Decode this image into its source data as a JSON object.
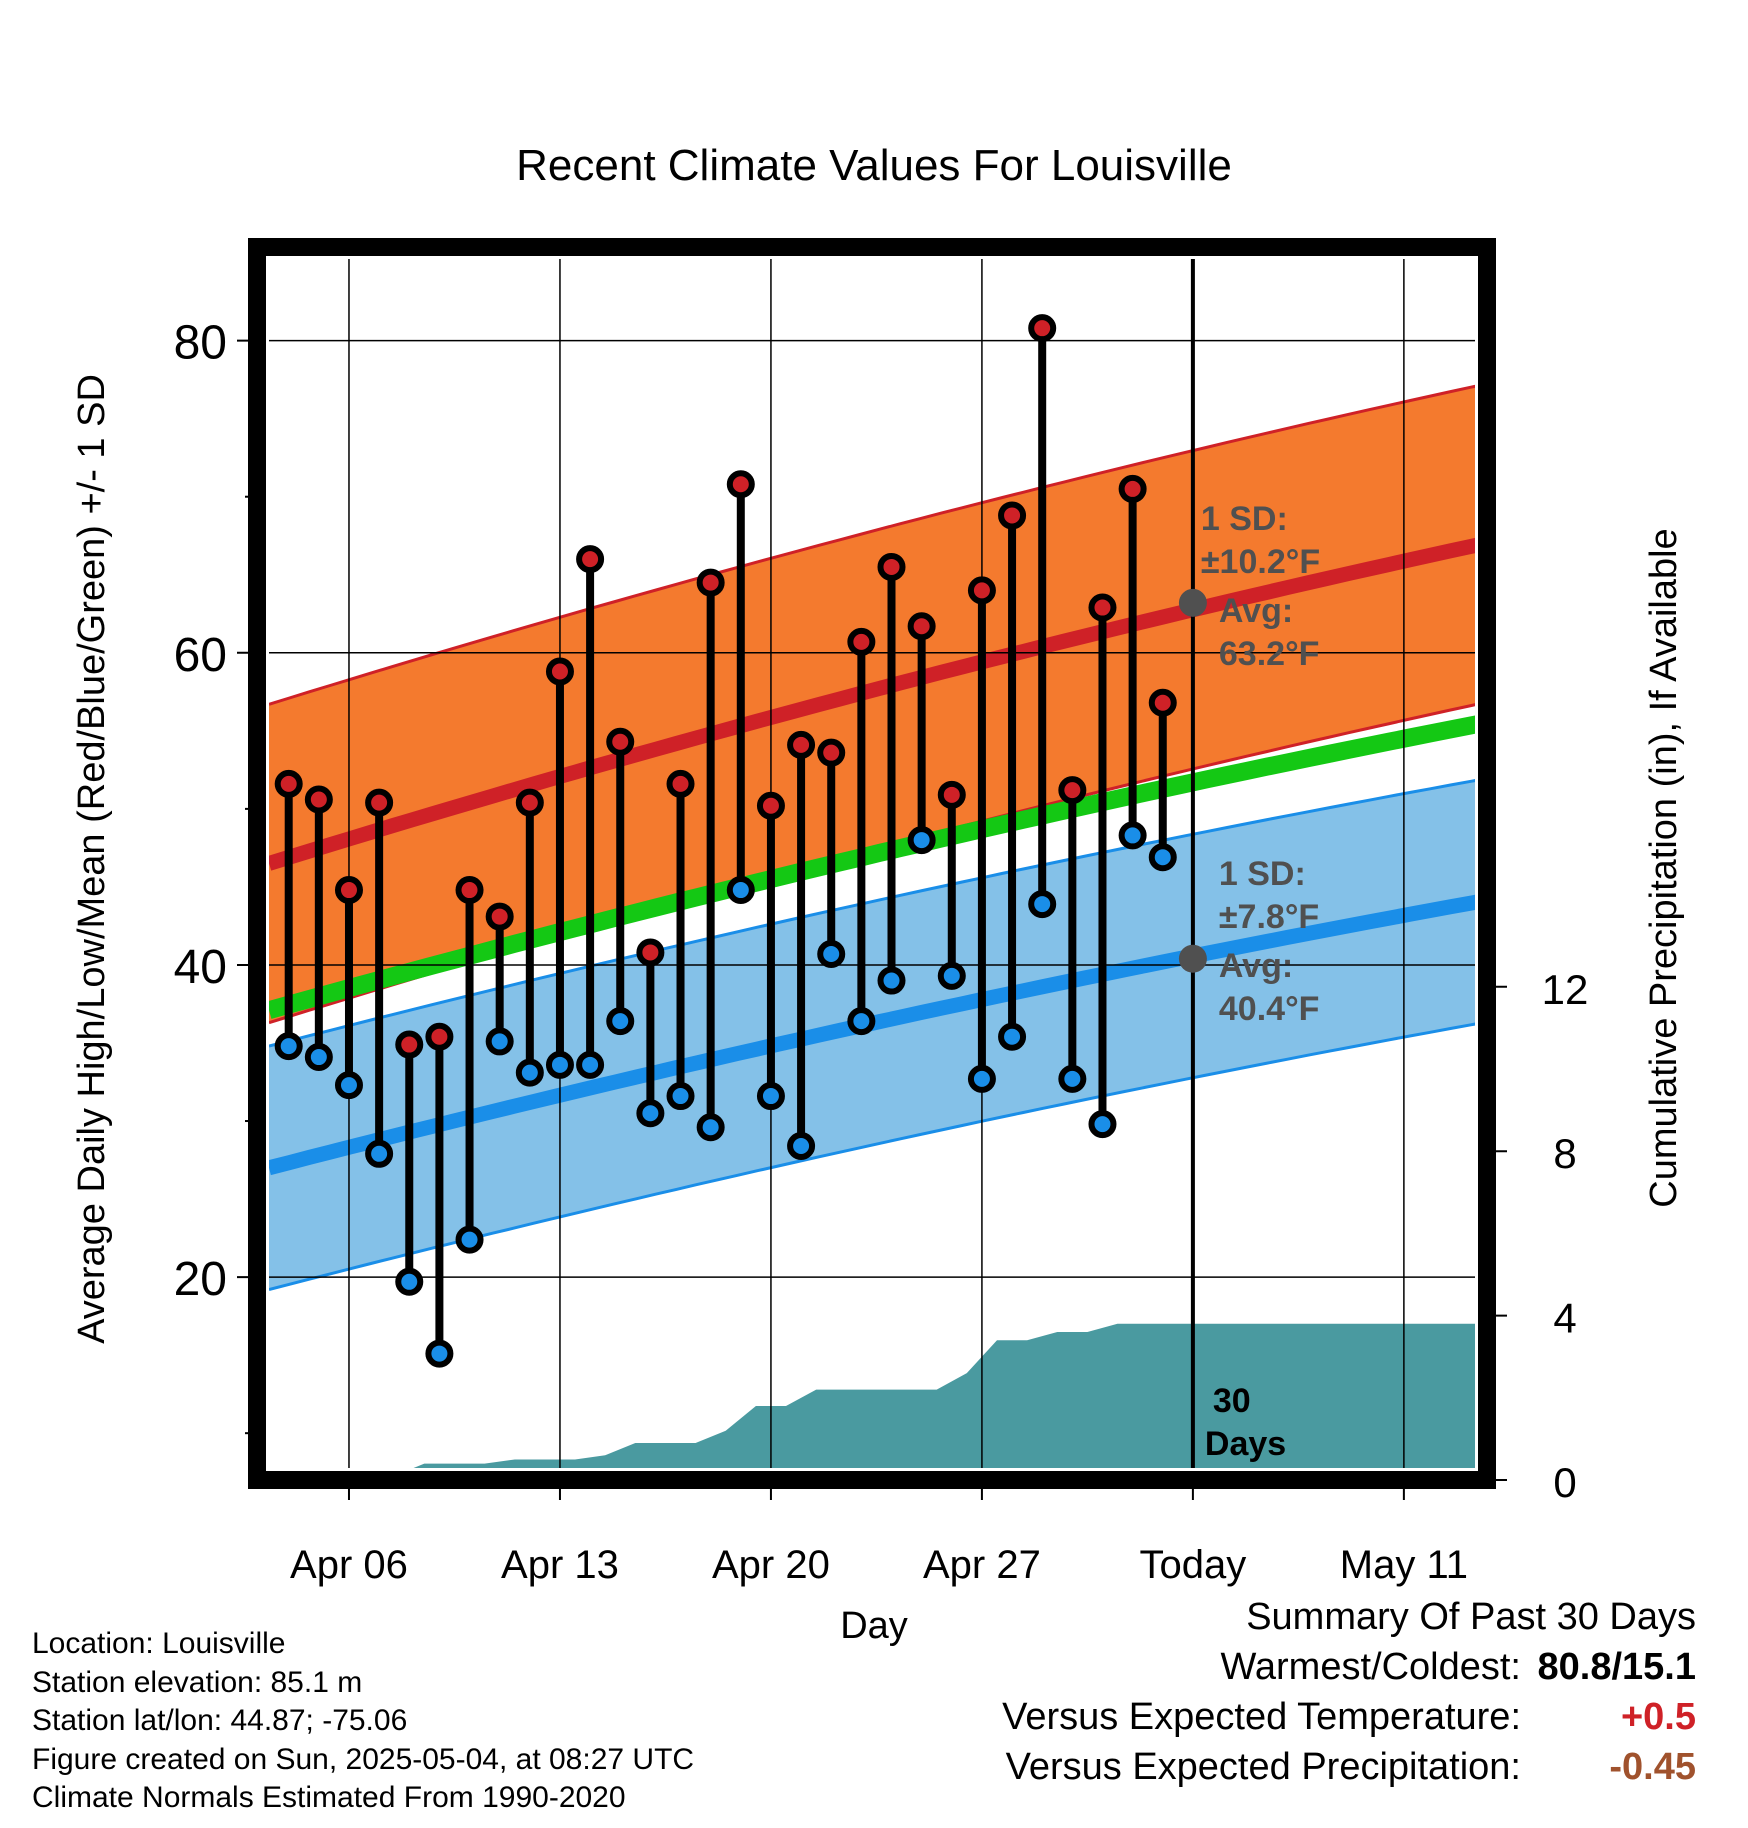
{
  "chart_data": {
    "type": "line",
    "title": "Recent Climate Values For Louisville",
    "xlabel": "Day",
    "ylabel": "Average Daily High/Low/Mean (Red/Blue/Green) +/- 1 SD",
    "y2label": "Cumulative Precipitation (in), If Available",
    "ylim": [
      7,
      86
    ],
    "y2lim": [
      0,
      30
    ],
    "yticks": [
      20,
      40,
      60,
      80
    ],
    "y2ticks": [
      0,
      4,
      8,
      12
    ],
    "x_tick_labels": [
      "Apr 06",
      "Apr 13",
      "Apr 20",
      "Apr 27",
      "Today",
      "May 11"
    ],
    "grid": true,
    "days": [
      "Apr 04",
      "Apr 05",
      "Apr 06",
      "Apr 07",
      "Apr 08",
      "Apr 09",
      "Apr 10",
      "Apr 11",
      "Apr 12",
      "Apr 13",
      "Apr 14",
      "Apr 15",
      "Apr 16",
      "Apr 17",
      "Apr 18",
      "Apr 19",
      "Apr 20",
      "Apr 21",
      "Apr 22",
      "Apr 23",
      "Apr 24",
      "Apr 25",
      "Apr 26",
      "Apr 27",
      "Apr 28",
      "Apr 29",
      "Apr 30",
      "May 01",
      "May 02",
      "May 03"
    ],
    "observed_high": [
      51.6,
      50.6,
      44.8,
      50.4,
      34.9,
      35.4,
      44.8,
      43.1,
      50.4,
      58.8,
      66.0,
      54.3,
      40.8,
      51.6,
      64.5,
      70.8,
      50.2,
      54.1,
      53.6,
      60.7,
      65.5,
      61.7,
      50.9,
      64.0,
      68.8,
      80.8,
      51.2,
      62.9,
      70.5,
      56.8
    ],
    "observed_low": [
      34.8,
      34.1,
      32.3,
      27.9,
      19.7,
      15.1,
      22.4,
      35.1,
      33.1,
      33.6,
      33.6,
      36.4,
      30.5,
      31.6,
      29.6,
      44.8,
      31.6,
      28.4,
      40.7,
      36.4,
      39.0,
      48.0,
      39.3,
      32.7,
      35.4,
      43.9,
      32.7,
      29.8,
      48.3,
      46.9
    ],
    "normals": {
      "high_mean": {
        "start": 46.5,
        "end": 67.1
      },
      "low_mean": {
        "start": 27.0,
        "end": 44.2
      },
      "mean": {
        "start": 37.1,
        "end": 55.6
      },
      "high_sd": 10.2,
      "low_sd": 7.8
    },
    "cumulative_precip_steps": [
      [
        0,
        0
      ],
      [
        1.5,
        0.1
      ],
      [
        3.5,
        0.1
      ],
      [
        4.5,
        0.4
      ],
      [
        6.5,
        0.4
      ],
      [
        7.5,
        0.5
      ],
      [
        9.5,
        0.5
      ],
      [
        10.5,
        0.6
      ],
      [
        11.5,
        0.9
      ],
      [
        13.5,
        0.9
      ],
      [
        14.5,
        1.2
      ],
      [
        15.5,
        1.8
      ],
      [
        16.5,
        1.8
      ],
      [
        17.5,
        2.2
      ],
      [
        21.5,
        2.2
      ],
      [
        22.5,
        2.6
      ],
      [
        23.5,
        3.4
      ],
      [
        24.5,
        3.4
      ],
      [
        25.5,
        3.6
      ],
      [
        26.5,
        3.6
      ],
      [
        27.5,
        3.8
      ],
      [
        40,
        3.8
      ]
    ],
    "colors": {
      "high_band": "#f47a2e",
      "high_line": "#cf2127",
      "low_band": "#84c1e8",
      "low_line": "#1a8ee8",
      "mean_line": "#14c814",
      "precip": "#4a9aa0",
      "high_marker": "#cf2127",
      "low_marker": "#1a8ee8",
      "annotation": "#505050"
    },
    "annotations": {
      "high_sd_label": "1 SD:",
      "high_sd_value": "±10.2°F",
      "high_avg_label": "Avg:",
      "high_avg_value": "63.2°F",
      "low_sd_label": "1 SD:",
      "low_sd_value": "±7.8°F",
      "low_avg_label": "Avg:",
      "low_avg_value": "40.4°F",
      "today_high_avg": 63.2,
      "today_low_avg": 40.4,
      "days_count": "30",
      "days_word": "Days"
    }
  },
  "info": {
    "location": "Location: Louisville",
    "elevation": "Station elevation: 85.1 m",
    "latlon": "Station lat/lon: 44.87; -75.06",
    "created": "Figure created on Sun, 2025-05-04, at 08:27 UTC",
    "normals": "Climate Normals Estimated From 1990-2020"
  },
  "summary": {
    "title": "Summary Of Past 30 Days",
    "warmest_label": "Warmest/Coldest:",
    "warmest_value": "80.8/15.1",
    "temp_label": "Versus Expected Temperature:",
    "temp_value": "+0.5",
    "temp_color": "#cf2127",
    "precip_label": "Versus Expected Precipitation:",
    "precip_value": "-0.45",
    "precip_color": "#a0522d"
  }
}
